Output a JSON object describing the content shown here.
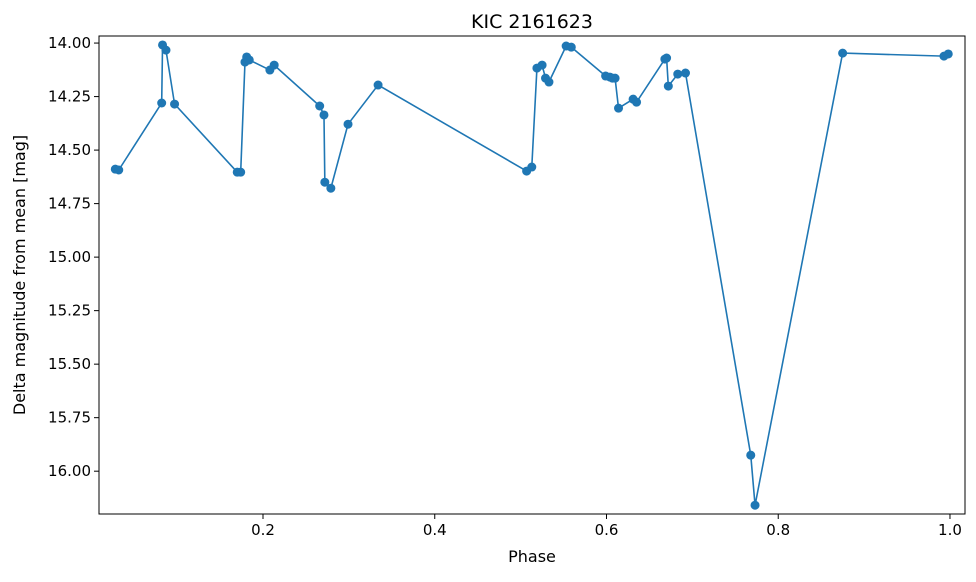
{
  "chart_data": {
    "type": "line",
    "title": "KIC 2161623",
    "x_label": "Phase",
    "y_label": "Delta magnitude from mean [mag]",
    "y_inverted": true,
    "markers": true,
    "xlim": [
      0.009,
      1.0175
    ],
    "xticks": [
      {
        "value": 0.2,
        "label": "0.2"
      },
      {
        "value": 0.4,
        "label": "0.4"
      },
      {
        "value": 0.6,
        "label": "0.6"
      },
      {
        "value": 0.8,
        "label": "0.8"
      },
      {
        "value": 1.0,
        "label": "1.0"
      }
    ],
    "ylim": [
      13.967,
      16.2
    ],
    "yticks": [
      {
        "value": 14.0,
        "label": "14.00"
      },
      {
        "value": 14.25,
        "label": "14.25"
      },
      {
        "value": 14.5,
        "label": "14.50"
      },
      {
        "value": 14.75,
        "label": "14.75"
      },
      {
        "value": 15.0,
        "label": "15.00"
      },
      {
        "value": 15.25,
        "label": "15.25"
      },
      {
        "value": 15.5,
        "label": "15.50"
      },
      {
        "value": 15.75,
        "label": "15.75"
      },
      {
        "value": 16.0,
        "label": "16.00"
      }
    ],
    "x": [
      0.028,
      0.032,
      0.082,
      0.083,
      0.087,
      0.097,
      0.17,
      0.174,
      0.179,
      0.181,
      0.184,
      0.208,
      0.213,
      0.266,
      0.271,
      0.272,
      0.279,
      0.299,
      0.334,
      0.507,
      0.513,
      0.519,
      0.525,
      0.529,
      0.533,
      0.553,
      0.559,
      0.599,
      0.604,
      0.607,
      0.61,
      0.614,
      0.631,
      0.635,
      0.668,
      0.67,
      0.672,
      0.683,
      0.692,
      0.768,
      0.773,
      0.875,
      0.993,
      0.998
    ],
    "series": [
      {
        "color": "#1f77b4",
        "values": [
          14.589,
          14.593,
          14.28,
          14.009,
          14.033,
          14.285,
          14.603,
          14.603,
          14.089,
          14.065,
          14.079,
          14.126,
          14.103,
          14.294,
          14.336,
          14.65,
          14.678,
          14.379,
          14.196,
          14.598,
          14.579,
          14.117,
          14.103,
          14.164,
          14.182,
          14.014,
          14.019,
          14.154,
          14.159,
          14.164,
          14.164,
          14.304,
          14.262,
          14.276,
          14.075,
          14.07,
          14.201,
          14.145,
          14.14,
          15.925,
          16.159,
          14.047,
          14.061,
          14.051
        ]
      }
    ]
  }
}
